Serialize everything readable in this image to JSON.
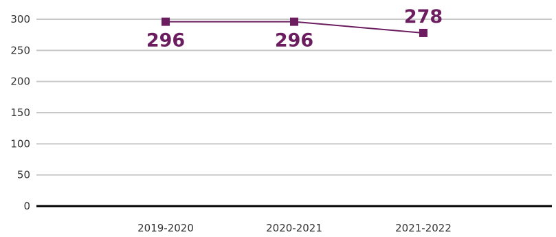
{
  "chart_data": {
    "type": "line",
    "categories": [
      "2019-2020",
      "2020-2021",
      "2021-2022"
    ],
    "series": [
      {
        "values": [
          296,
          296,
          278
        ],
        "color": "#6b1d5f",
        "marker": "square"
      }
    ],
    "data_labels": [
      "296",
      "296",
      "278"
    ],
    "y_ticks": [
      "0",
      "50",
      "100",
      "150",
      "200",
      "250",
      "300"
    ],
    "ylim": [
      0,
      300
    ],
    "grid": true,
    "gridline_color": "#c8c8c8",
    "baseline_color": "#000000",
    "legend": "none"
  }
}
